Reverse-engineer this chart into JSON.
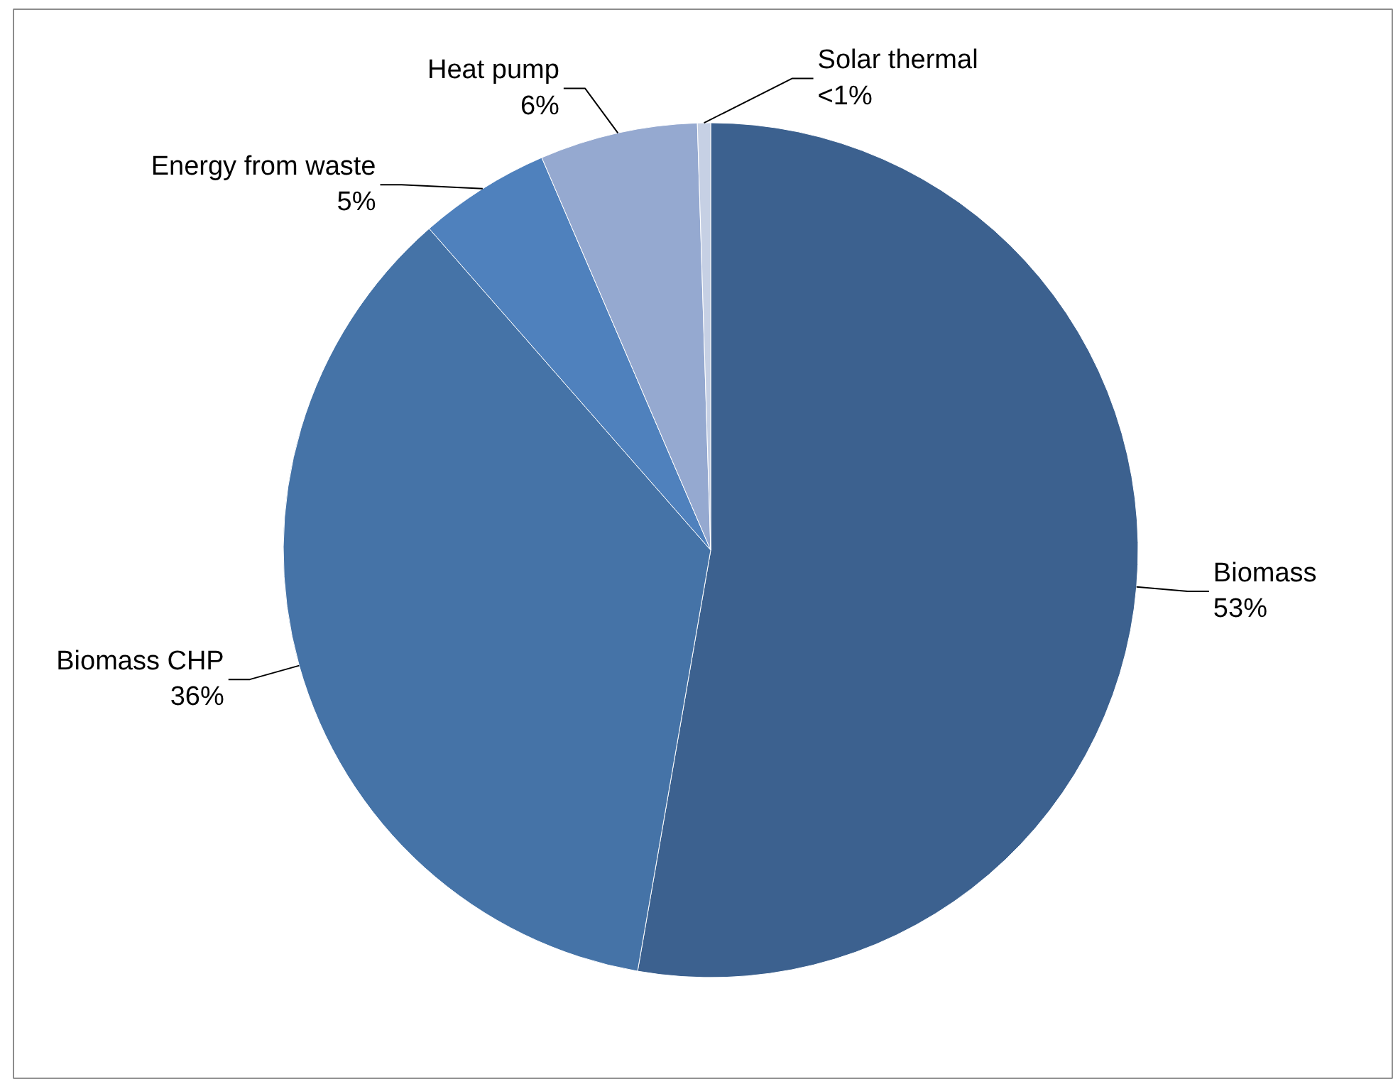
{
  "chart_data": {
    "type": "pie",
    "categories": [
      "Biomass",
      "Biomass CHP",
      "Energy from waste",
      "Heat pump",
      "Solar thermal"
    ],
    "values": [
      53,
      36,
      5,
      6,
      0.5
    ],
    "colors": [
      "#3c618f",
      "#4573a7",
      "#4f81bd",
      "#95a9d0",
      "#c6d0e4"
    ],
    "value_labels": [
      "53%",
      "36%",
      "5%",
      "6%",
      "<1%"
    ]
  }
}
